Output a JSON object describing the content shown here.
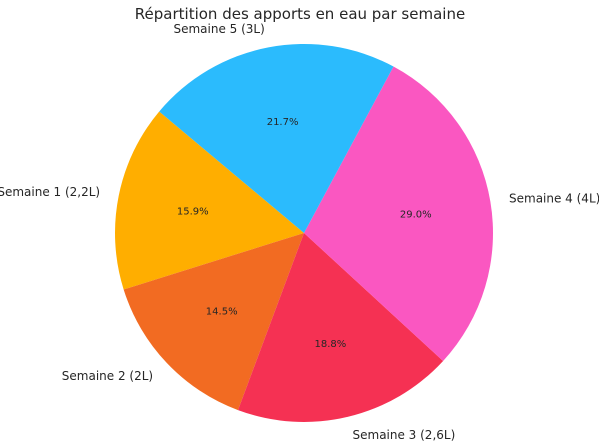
{
  "chart_data": {
    "type": "pie",
    "title": "Répartition des apports en eau par semaine",
    "start_angle_deg": 140,
    "direction": "counterclockwise",
    "slices": [
      {
        "label": "Semaine 1 (2,2L)",
        "value": 2.2,
        "pct_label": "15.9%",
        "color": "#FFAE00"
      },
      {
        "label": "Semaine 2 (2L)",
        "value": 2.0,
        "pct_label": "14.5%",
        "color": "#F26B22"
      },
      {
        "label": "Semaine 3 (2,6L)",
        "value": 2.6,
        "pct_label": "18.8%",
        "color": "#F53153"
      },
      {
        "label": "Semaine 4 (4L)",
        "value": 4.0,
        "pct_label": "29.0%",
        "color": "#FA57C1"
      },
      {
        "label": "Semaine 5 (3L)",
        "value": 3.0,
        "pct_label": "21.7%",
        "color": "#2BBBFD"
      }
    ]
  }
}
